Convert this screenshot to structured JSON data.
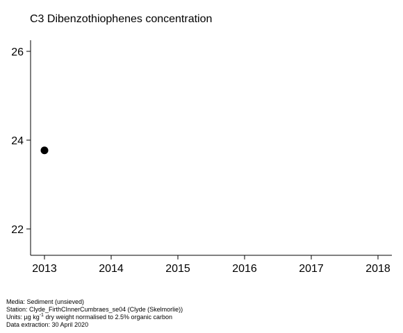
{
  "chart_data": {
    "type": "scatter",
    "title": "C3 Dibenzothiophenes concentration",
    "xlabel": "",
    "ylabel": "",
    "xlim": [
      2013,
      2018
    ],
    "ylim": [
      21.5,
      26.5
    ],
    "x_ticks": [
      2013,
      2014,
      2015,
      2016,
      2017,
      2018
    ],
    "y_ticks": [
      22,
      24,
      26
    ],
    "grid": false,
    "points": [
      {
        "x": 2013,
        "y": 23.77
      }
    ],
    "marker_color": "#000000"
  },
  "footer": {
    "media": "Media: Sediment (unsieved)",
    "station": "Station: Clyde_FirthCInnerCumbraes_se04 (Clyde (Skelmorlie))",
    "units_prefix": "Units:  µg kg",
    "units_sup": "-1",
    "units_suffix": " dry weight normalised to 2.5% organic carbon",
    "extraction": "Data extraction: 30 April 2020"
  }
}
